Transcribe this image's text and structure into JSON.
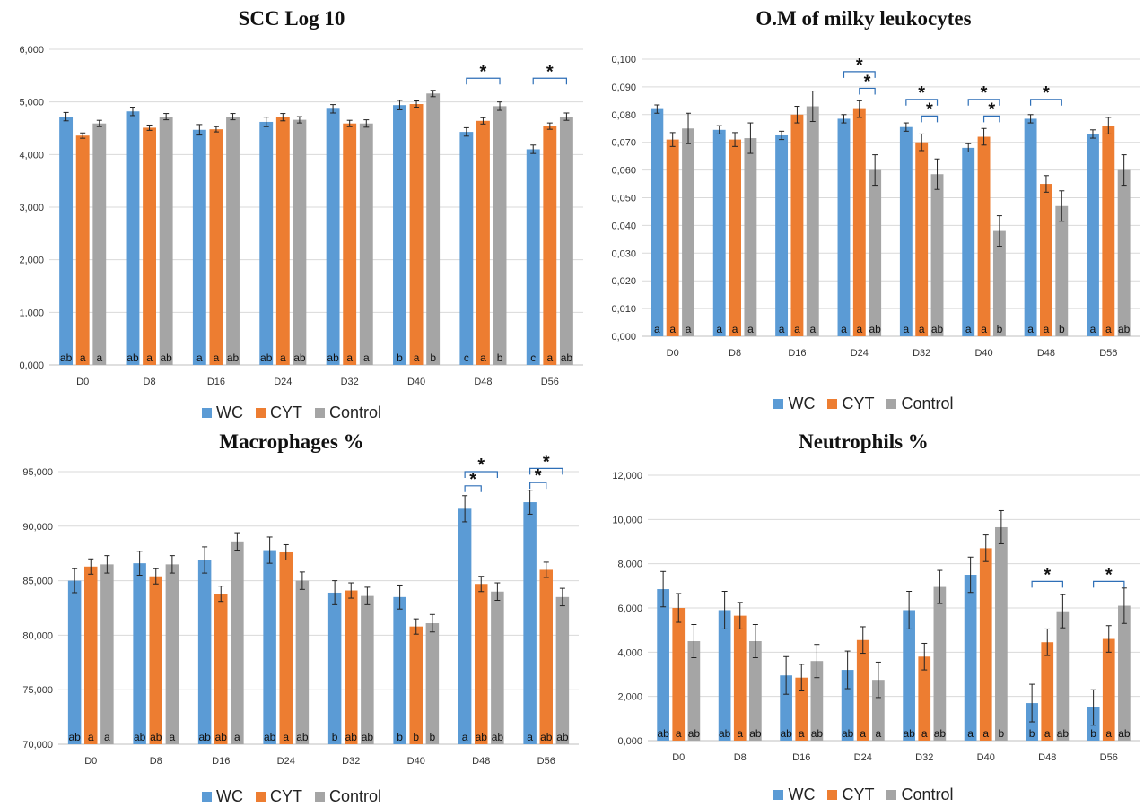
{
  "colors": {
    "WC": "#5b9bd5",
    "CYT": "#ed7d31",
    "Control": "#a5a5a5",
    "bracket": "#2e6fb7",
    "grid": "#d9d9d9"
  },
  "chart_data": [
    {
      "type": "bar",
      "title": "SCC Log 10",
      "categories": [
        "D0",
        "D8",
        "D16",
        "D24",
        "D32",
        "D40",
        "D48",
        "D56"
      ],
      "ylim": [
        0,
        6
      ],
      "yticks": [
        0,
        1,
        2,
        3,
        4,
        5,
        6
      ],
      "ytick_labels": [
        "0,000",
        "1,000",
        "2,000",
        "3,000",
        "4,000",
        "5,000",
        "6,000"
      ],
      "grid": true,
      "legend_position": "bottom",
      "series": [
        {
          "name": "WC",
          "values": [
            4.72,
            4.82,
            4.47,
            4.62,
            4.87,
            4.94,
            4.43,
            4.1
          ],
          "errors": [
            0.08,
            0.08,
            0.1,
            0.09,
            0.08,
            0.09,
            0.08,
            0.08
          ],
          "letters": [
            "ab",
            "ab",
            "a",
            "ab",
            "ab",
            "b",
            "c",
            "c"
          ]
        },
        {
          "name": "CYT",
          "values": [
            4.36,
            4.51,
            4.48,
            4.71,
            4.59,
            4.96,
            4.64,
            4.54
          ],
          "errors": [
            0.05,
            0.05,
            0.05,
            0.07,
            0.06,
            0.06,
            0.06,
            0.06
          ],
          "letters": [
            "a",
            "a",
            "a",
            "a",
            "a",
            "a",
            "a",
            "a"
          ]
        },
        {
          "name": "Control",
          "values": [
            4.59,
            4.72,
            4.72,
            4.66,
            4.59,
            5.16,
            4.92,
            4.72
          ],
          "errors": [
            0.06,
            0.06,
            0.06,
            0.06,
            0.07,
            0.06,
            0.08,
            0.07
          ],
          "letters": [
            "a",
            "ab",
            "ab",
            "ab",
            "a",
            "b",
            "b",
            "ab"
          ]
        }
      ],
      "significance": [
        {
          "label": "*",
          "category": 6,
          "from": "WC",
          "to": "Control",
          "y": 5.45
        },
        {
          "label": "*",
          "category": 7,
          "from": "WC",
          "to": "Control",
          "y": 5.45
        }
      ]
    },
    {
      "type": "bar",
      "title": "O.M of milky leukocytes",
      "categories": [
        "D0",
        "D8",
        "D16",
        "D24",
        "D32",
        "D40",
        "D48",
        "D56"
      ],
      "ylim": [
        0,
        0.1
      ],
      "yticks": [
        0,
        0.01,
        0.02,
        0.03,
        0.04,
        0.05,
        0.06,
        0.07,
        0.08,
        0.09,
        0.1
      ],
      "ytick_labels": [
        "0,000",
        "0,010",
        "0,020",
        "0,030",
        "0,040",
        "0,050",
        "0,060",
        "0,070",
        "0,080",
        "0,090",
        "0,100"
      ],
      "grid": true,
      "legend_position": "bottom",
      "series": [
        {
          "name": "WC",
          "values": [
            0.082,
            0.0745,
            0.0725,
            0.0785,
            0.0755,
            0.068,
            0.0785,
            0.073
          ],
          "errors": [
            0.0015,
            0.0015,
            0.0015,
            0.0015,
            0.0015,
            0.0015,
            0.0015,
            0.0015
          ],
          "letters": [
            "a",
            "a",
            "a",
            "a",
            "a",
            "a",
            "a",
            "a"
          ]
        },
        {
          "name": "CYT",
          "values": [
            0.071,
            0.071,
            0.08,
            0.082,
            0.07,
            0.072,
            0.055,
            0.076
          ],
          "errors": [
            0.0025,
            0.0025,
            0.003,
            0.003,
            0.003,
            0.003,
            0.003,
            0.003
          ],
          "letters": [
            "a",
            "a",
            "a",
            "a",
            "a",
            "a",
            "a",
            "a"
          ]
        },
        {
          "name": "Control",
          "values": [
            0.075,
            0.0715,
            0.083,
            0.06,
            0.0585,
            0.038,
            0.047,
            0.06
          ],
          "errors": [
            0.0055,
            0.0055,
            0.0055,
            0.0055,
            0.0055,
            0.0055,
            0.0055,
            0.0055
          ],
          "letters": [
            "a",
            "a",
            "a",
            "ab",
            "ab",
            "b",
            "b",
            "ab"
          ]
        }
      ],
      "significance": [
        {
          "label": "*",
          "category": 3,
          "from": "WC",
          "to": "Control",
          "y": 0.0955
        },
        {
          "label": "*",
          "category": 3,
          "from": "CYT",
          "to": "Control",
          "y": 0.0895
        },
        {
          "label": "*",
          "category": 4,
          "from": "WC",
          "to": "Control",
          "y": 0.0855
        },
        {
          "label": "*",
          "category": 4,
          "from": "CYT",
          "to": "Control",
          "y": 0.0795
        },
        {
          "label": "*",
          "category": 5,
          "from": "WC",
          "to": "Control",
          "y": 0.0855
        },
        {
          "label": "*",
          "category": 5,
          "from": "CYT",
          "to": "Control",
          "y": 0.0795
        },
        {
          "label": "*",
          "category": 6,
          "from": "WC",
          "to": "Control",
          "y": 0.0855
        }
      ]
    },
    {
      "type": "bar",
      "title": "Macrophages %",
      "categories": [
        "D0",
        "D8",
        "D16",
        "D24",
        "D32",
        "D40",
        "D48",
        "D56"
      ],
      "ylim": [
        70,
        95
      ],
      "yticks": [
        70,
        75,
        80,
        85,
        90,
        95
      ],
      "ytick_labels": [
        "70,000",
        "75,000",
        "80,000",
        "85,000",
        "90,000",
        "95,000"
      ],
      "grid": true,
      "legend_position": "bottom",
      "series": [
        {
          "name": "WC",
          "values": [
            85.0,
            86.6,
            86.9,
            87.8,
            83.9,
            83.5,
            91.6,
            92.2
          ],
          "errors": [
            1.1,
            1.1,
            1.2,
            1.2,
            1.1,
            1.1,
            1.2,
            1.1
          ],
          "letters": [
            "ab",
            "ab",
            "ab",
            "ab",
            "b",
            "b",
            "a",
            "a"
          ]
        },
        {
          "name": "CYT",
          "values": [
            86.3,
            85.4,
            83.8,
            87.6,
            84.1,
            80.8,
            84.7,
            86.0
          ],
          "errors": [
            0.7,
            0.7,
            0.7,
            0.7,
            0.7,
            0.7,
            0.7,
            0.7
          ],
          "letters": [
            "a",
            "ab",
            "ab",
            "a",
            "ab",
            "b",
            "ab",
            "ab"
          ]
        },
        {
          "name": "Control",
          "values": [
            86.5,
            86.5,
            88.6,
            85.0,
            83.6,
            81.1,
            84.0,
            83.5
          ],
          "errors": [
            0.8,
            0.8,
            0.8,
            0.8,
            0.8,
            0.8,
            0.8,
            0.8
          ],
          "letters": [
            "a",
            "a",
            "a",
            "ab",
            "ab",
            "b",
            "ab",
            "ab"
          ]
        }
      ],
      "significance": [
        {
          "label": "*",
          "category": 6,
          "from": "WC",
          "to": "CYT",
          "y": 93.7
        },
        {
          "label": "*",
          "category": 6,
          "from": "WC",
          "to": "Control",
          "y": 95.0
        },
        {
          "label": "*",
          "category": 7,
          "from": "WC",
          "to": "CYT",
          "y": 94.0
        },
        {
          "label": "*",
          "category": 7,
          "from": "WC",
          "to": "Control",
          "y": 95.3
        }
      ]
    },
    {
      "type": "bar",
      "title": "Neutrophils %",
      "categories": [
        "D0",
        "D8",
        "D16",
        "D24",
        "D32",
        "D40",
        "D48",
        "D56"
      ],
      "ylim": [
        0,
        12
      ],
      "yticks": [
        0,
        2,
        4,
        6,
        8,
        10,
        12
      ],
      "ytick_labels": [
        "0,000",
        "2,000",
        "4,000",
        "6,000",
        "8,000",
        "10,000",
        "12,000"
      ],
      "grid": true,
      "legend_position": "bottom",
      "series": [
        {
          "name": "WC",
          "values": [
            6.85,
            5.9,
            2.95,
            3.2,
            5.9,
            7.5,
            1.7,
            1.5
          ],
          "errors": [
            0.8,
            0.85,
            0.85,
            0.85,
            0.85,
            0.8,
            0.85,
            0.8
          ],
          "letters": [
            "ab",
            "ab",
            "ab",
            "ab",
            "ab",
            "a",
            "b",
            "b"
          ]
        },
        {
          "name": "CYT",
          "values": [
            6.0,
            5.65,
            2.85,
            4.55,
            3.8,
            8.7,
            4.45,
            4.6
          ],
          "errors": [
            0.65,
            0.6,
            0.6,
            0.6,
            0.6,
            0.6,
            0.6,
            0.6
          ],
          "letters": [
            "a",
            "a",
            "a",
            "a",
            "a",
            "a",
            "a",
            "a"
          ]
        },
        {
          "name": "Control",
          "values": [
            4.5,
            4.5,
            3.6,
            2.75,
            6.95,
            9.65,
            5.85,
            6.1
          ],
          "errors": [
            0.75,
            0.75,
            0.75,
            0.8,
            0.75,
            0.75,
            0.75,
            0.8
          ],
          "letters": [
            "ab",
            "ab",
            "ab",
            "a",
            "ab",
            "b",
            "ab",
            "ab"
          ]
        }
      ],
      "significance": [
        {
          "label": "*",
          "category": 6,
          "from": "WC",
          "to": "Control",
          "y": 7.2
        },
        {
          "label": "*",
          "category": 7,
          "from": "WC",
          "to": "Control",
          "y": 7.2
        }
      ]
    }
  ]
}
